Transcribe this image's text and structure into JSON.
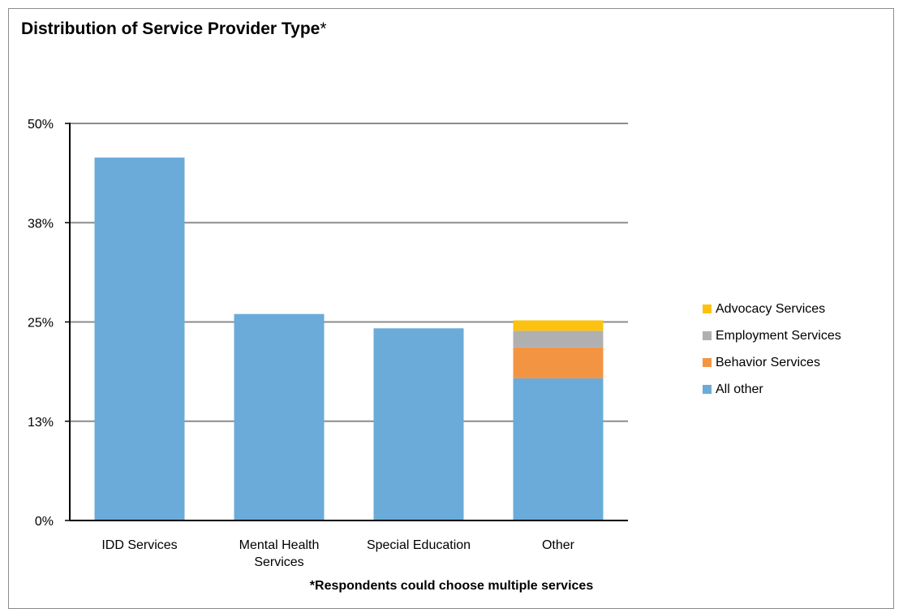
{
  "title": "Distribution of Service Provider Type",
  "title_star": "*",
  "footnote": "*Respondents could choose multiple services",
  "colors": {
    "All other": "#6aabda",
    "Behavior Services": "#f39443",
    "Employment Services": "#b0b0b0",
    "Advocacy Services": "#fdc20f"
  },
  "chart_data": {
    "type": "bar",
    "stacked": true,
    "categories": [
      "IDD Services",
      "Mental Health Services",
      "Special Education",
      "Other"
    ],
    "category_labels": [
      [
        "IDD Services"
      ],
      [
        "Mental Health",
        "Services"
      ],
      [
        "Special Education"
      ],
      [
        "Other"
      ]
    ],
    "series": [
      {
        "name": "All other",
        "values": [
          45.7,
          26.0,
          24.2,
          17.9
        ]
      },
      {
        "name": "Behavior Services",
        "values": [
          0,
          0,
          0,
          3.9
        ]
      },
      {
        "name": "Employment Services",
        "values": [
          0,
          0,
          0,
          2.1
        ]
      },
      {
        "name": "Advocacy Services",
        "values": [
          0,
          0,
          0,
          1.3
        ]
      }
    ],
    "y_ticks": [
      0,
      12.5,
      25,
      37.5,
      50
    ],
    "y_tick_labels": [
      "0%",
      "13%",
      "25%",
      "38%",
      "50%"
    ],
    "ylim": [
      0,
      50
    ],
    "grid": true,
    "legend_position": "right",
    "legend_order": [
      "Advocacy Services",
      "Employment Services",
      "Behavior Services",
      "All other"
    ],
    "xlabel": "",
    "ylabel": ""
  }
}
